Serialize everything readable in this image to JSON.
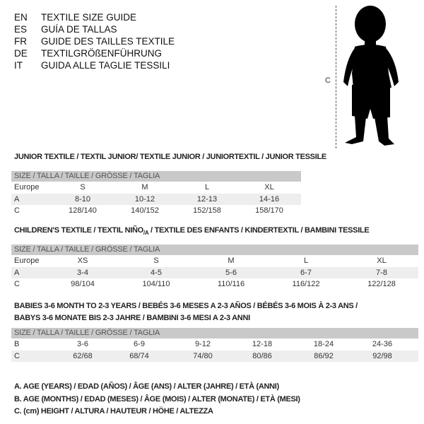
{
  "languages": [
    {
      "code": "EN",
      "text": "TEXTILE SIZE GUIDE"
    },
    {
      "code": "ES",
      "text": "GUÍA DE TALLAS"
    },
    {
      "code": "FR",
      "text": "GUIDE DES TAILLES TEXTILE"
    },
    {
      "code": "DE",
      "text": "TEXTILGRÖßENFÜHRUNG"
    },
    {
      "code": "IT",
      "text": "GUIDA ALLE TAGLIE TESSILI"
    }
  ],
  "figure": {
    "measure_label": "C",
    "icon": "child-silhouette"
  },
  "size_header": "SIZE / TALLA / TAILLE / GRÖSSE / TAGLIA",
  "junior": {
    "title": "JUNIOR TEXTILE / TEXTIL JUNIOR/ TEXTILE JUNIOR / JUNIORTEXTIL / JUNIOR TESSILE",
    "rows": [
      {
        "label": "Europe",
        "values": [
          "S",
          "M",
          "L",
          "XL"
        ]
      },
      {
        "label": "A",
        "values": [
          "8-10",
          "10-12",
          "12-13",
          "14-16"
        ]
      },
      {
        "label": "C",
        "values": [
          "128/140",
          "140/152",
          "152/158",
          "158/170"
        ]
      }
    ]
  },
  "children": {
    "title_a": "CHILDREN'S TEXTILE / TEXTIL NIÑO",
    "title_sub": "/A",
    "title_b": " / TEXTILE DES ENFANTS / KINDERTEXTIL / BAMBINI TESSILE",
    "rows": [
      {
        "label": "Europe",
        "values": [
          "XS",
          "S",
          "M",
          "L",
          "XL"
        ]
      },
      {
        "label": "A",
        "values": [
          "3-4",
          "4-5",
          "5-6",
          "6-7",
          "7-8"
        ]
      },
      {
        "label": "C",
        "values": [
          "98/104",
          "104/110",
          "110/116",
          "116/122",
          "122/128"
        ]
      }
    ]
  },
  "babies": {
    "title_1": "BABIES 3-6 MONTH TO 2-3 YEARS / BEBÉS 3-6 MESES A 2-3 AÑOS / BÉBÉS 3-6 MOIS À 2-3 ANS /",
    "title_2": "BABYS 3-6 MONATE BIS 2-3 JAHRE / BAMBINI 3-6 MESI A 2-3 ANNI",
    "rows": [
      {
        "label": "B",
        "values": [
          "3-6",
          "6-9",
          "9-12",
          "12-18",
          "18-24",
          "24-36"
        ]
      },
      {
        "label": "C",
        "values": [
          "62/68",
          "68/74",
          "74/80",
          "80/86",
          "86/92",
          "92/98"
        ]
      }
    ]
  },
  "legend": [
    "A. AGE (YEARS) / EDAD (AÑOS) / ÂGE (ANS) / ALTER (JAHRE) / ETÀ (ANNI)",
    "B. AGE (MONTHS) / EDAD (MESES) / ÂGE (MOIS) / ALTER (MONATE) / ETÀ (MESI)",
    "C. (cm) HEIGHT / ALTURA / HAUTEUR / HÖHE / ALTEZZA"
  ]
}
